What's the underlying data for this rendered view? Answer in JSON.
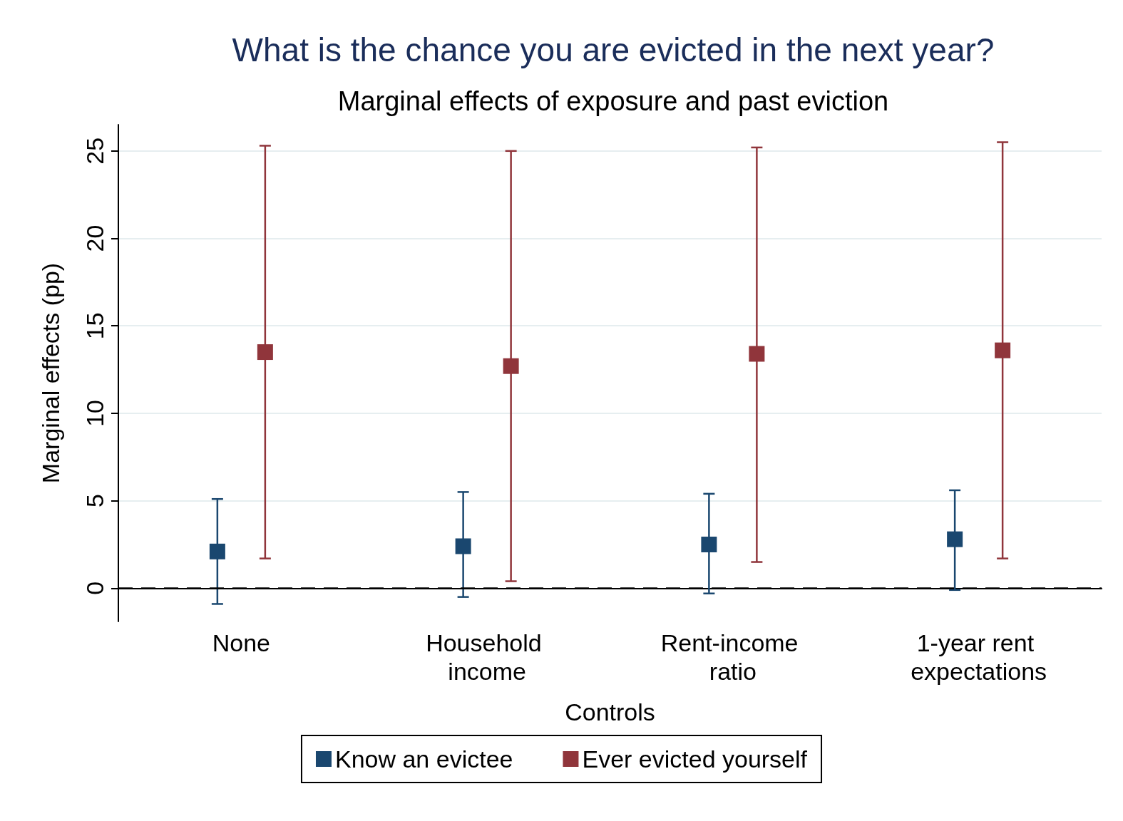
{
  "chart_data": {
    "type": "scatter",
    "title": "What is the chance you are evicted in the next year?",
    "subtitle": "Marginal effects of exposure and past eviction",
    "xlabel": "Controls",
    "ylabel": "Marginal effects (pp)",
    "categories": [
      "None",
      "Household income",
      "Rent-income ratio",
      "1-year rent expectations"
    ],
    "series": [
      {
        "name": "Know an evictee",
        "color": "#1a476f",
        "values": [
          2.1,
          2.4,
          2.5,
          2.8
        ],
        "errors": [
          [
            -0.9,
            5.1
          ],
          [
            -0.5,
            5.5
          ],
          [
            -0.3,
            5.4
          ],
          [
            -0.1,
            5.6
          ]
        ]
      },
      {
        "name": "Ever evicted yourself",
        "color": "#90353b",
        "values": [
          13.5,
          12.7,
          13.4,
          13.6
        ],
        "errors": [
          [
            1.7,
            25.3
          ],
          [
            0.4,
            25.0
          ],
          [
            1.5,
            25.2
          ],
          [
            1.7,
            25.5
          ]
        ]
      }
    ],
    "ylim": [
      -1.9,
      26.5
    ],
    "yticks": [
      0,
      5,
      10,
      15,
      20,
      25
    ],
    "grid": "y",
    "legend": "bottom",
    "marker": "square",
    "ref_lines": [
      {
        "axis": "y",
        "value": 0,
        "color": "#000000",
        "line_style": "dashed"
      }
    ]
  }
}
